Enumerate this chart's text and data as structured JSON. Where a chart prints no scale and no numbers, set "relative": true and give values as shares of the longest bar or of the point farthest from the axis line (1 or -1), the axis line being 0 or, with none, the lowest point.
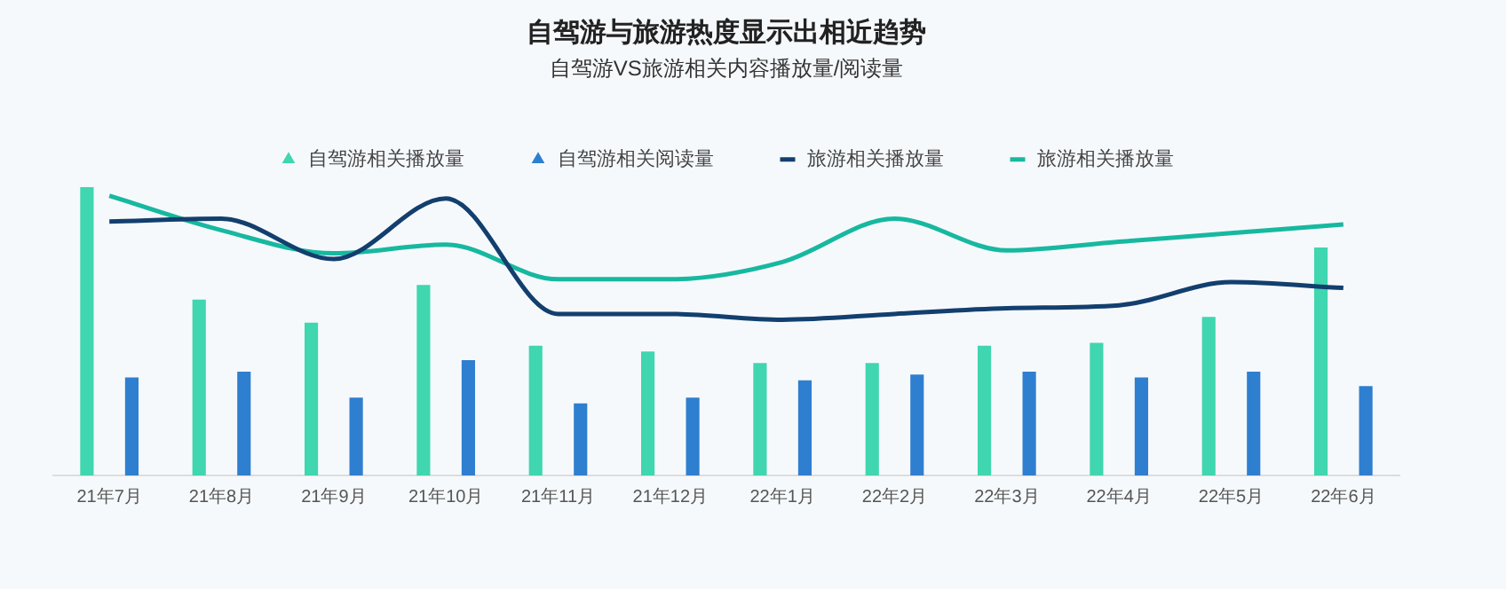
{
  "chart_data": {
    "type": "bar",
    "title": "自驾游与旅游热度显示出相近趋势",
    "subtitle": "自驾游VS旅游相关内容播放量/阅读量",
    "categories": [
      "21年7月",
      "21年8月",
      "21年9月",
      "21年10月",
      "21年11月",
      "21年12月",
      "22年1月",
      "22年2月",
      "22年3月",
      "22年4月",
      "22年5月",
      "22年6月"
    ],
    "relative": true,
    "legend": "top",
    "grid": false,
    "marker": "none",
    "line_style": "solid",
    "series": [
      {
        "name": "自驾游相关播放量",
        "color": "#3fd6b0",
        "values": [
          1,
          0.61,
          0.53,
          0.66,
          0.45,
          0.43,
          0.39,
          0.39,
          0.45,
          0.46,
          0.55,
          0.79
        ]
      },
      {
        "name": "自驾游相关阅读量",
        "color": "#2f7fd0",
        "values": [
          0.34,
          0.36,
          0.27,
          0.4,
          0.25,
          0.27,
          0.33,
          0.35,
          0.36,
          0.34,
          0.36,
          0.31
        ]
      },
      {
        "name": "旅游相关播放量",
        "type": "line",
        "color": "#123f6e",
        "values": [
          0.88,
          0.89,
          0.75,
          0.96,
          0.56,
          0.56,
          0.54,
          0.56,
          0.58,
          0.59,
          0.67,
          0.65
        ]
      },
      {
        "name": "旅游相关播放量",
        "type": "line",
        "color": "#17b8a0",
        "values": [
          0.97,
          0.85,
          0.77,
          0.8,
          0.68,
          0.68,
          0.74,
          0.89,
          0.78,
          0.81,
          0.84,
          0.87
        ]
      }
    ]
  }
}
